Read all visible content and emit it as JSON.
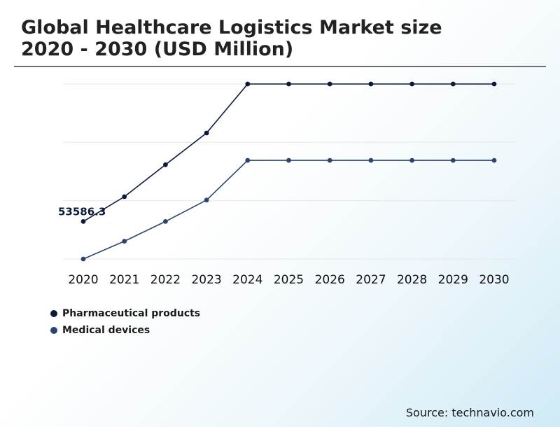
{
  "chart_data": {
    "type": "line",
    "title_lines": [
      "Global Healthcare Logistics Market size",
      "2020 - 2030 (USD Million)"
    ],
    "categories": [
      "2020",
      "2021",
      "2022",
      "2023",
      "2024",
      "2025",
      "2026",
      "2027",
      "2028",
      "2029",
      "2030"
    ],
    "series": [
      {
        "name": "Pharmaceutical products",
        "color": "#0b1a3a",
        "values": [
          53586.3,
          58153,
          64047,
          69904,
          78931,
          78931,
          78931,
          78931,
          78931,
          78931,
          78931
        ]
      },
      {
        "name": "Medical devices",
        "color": "#2d4470",
        "values": [
          46671,
          49947,
          53586.3,
          57532,
          64859,
          64859,
          64859,
          64859,
          64859,
          64859,
          64859
        ]
      }
    ],
    "data_labels": [
      {
        "series": 0,
        "index": 0,
        "text": "53586.3"
      }
    ],
    "ylim": [
      46671,
      78931
    ],
    "grid": true,
    "legend_position": "bottom-left",
    "source": "Source: technavio.com"
  }
}
